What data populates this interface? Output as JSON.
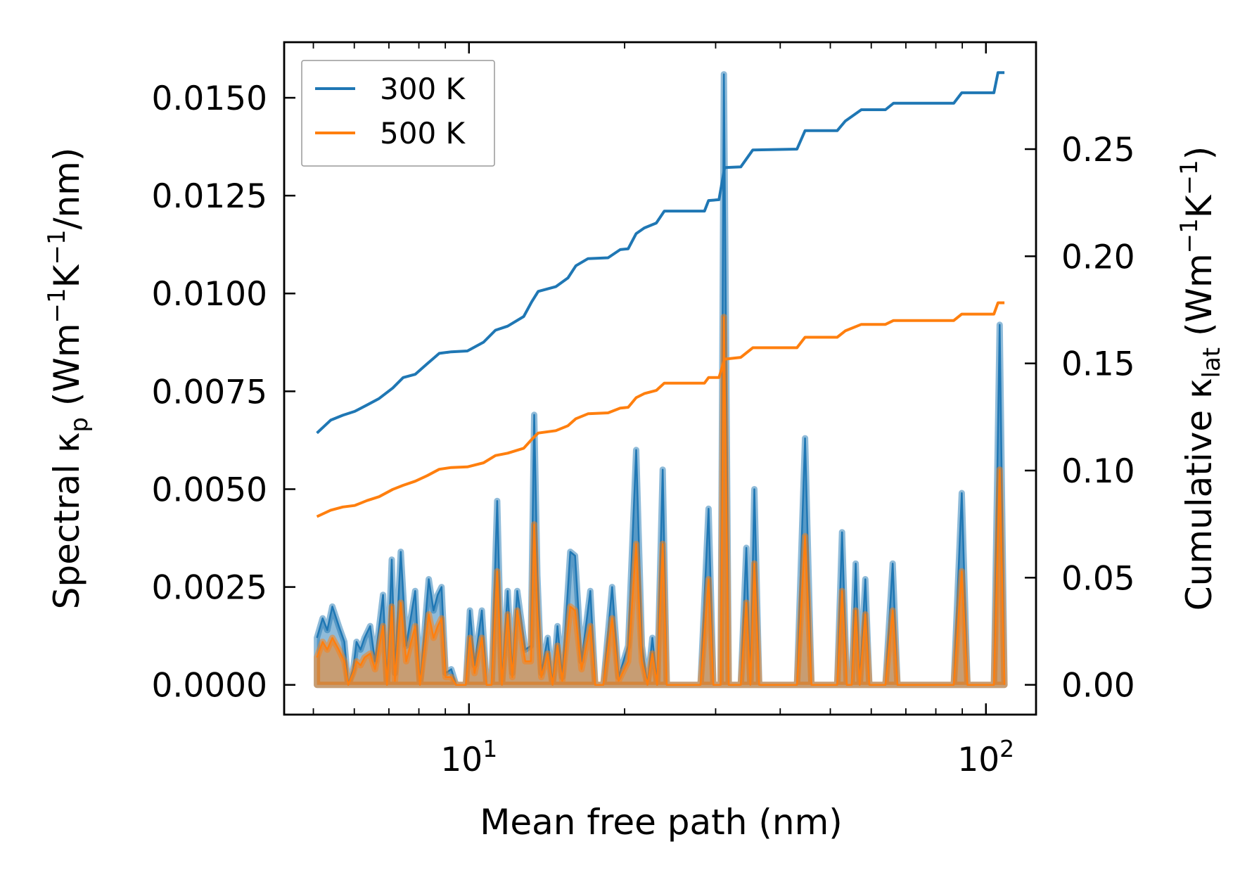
{
  "chart_data": {
    "type": "line",
    "xscale": "log",
    "xlabel": "Mean free path (nm)",
    "ylabel": "Spectral κ_p (Wm⁻¹K⁻¹/nm)",
    "ylabel_parts": {
      "pre": "Spectral κ",
      "sub": "p",
      "post": " (Wm",
      "s1": "−1",
      "m": "K",
      "s2": "−1",
      "end": "/nm)"
    },
    "y2label": "Cumulative κ_lat (Wm⁻¹K⁻¹)",
    "y2label_parts": {
      "pre": "Cumulative κ",
      "sub": "lat",
      "post": " (Wm",
      "s1": "−1",
      "m": "K",
      "s2": "−1",
      "end": ")"
    },
    "xlim": [
      4.39,
      125
    ],
    "ylim": [
      -0.00076,
      0.01642
    ],
    "y2lim": [
      -0.0139,
      0.2999
    ],
    "xticks": [
      {
        "value": 10,
        "base": "10",
        "exp": "1"
      },
      {
        "value": 100,
        "base": "10",
        "exp": "2"
      }
    ],
    "yticks": [
      {
        "value": 0,
        "label": "0.0000"
      },
      {
        "value": 0.0025,
        "label": "0.0025"
      },
      {
        "value": 0.005,
        "label": "0.0050"
      },
      {
        "value": 0.0075,
        "label": "0.0075"
      },
      {
        "value": 0.01,
        "label": "0.0100"
      },
      {
        "value": 0.0125,
        "label": "0.0125"
      },
      {
        "value": 0.015,
        "label": "0.0150"
      }
    ],
    "y2ticks": [
      {
        "value": 0,
        "label": "0.00"
      },
      {
        "value": 0.05,
        "label": "0.05"
      },
      {
        "value": 0.1,
        "label": "0.10"
      },
      {
        "value": 0.15,
        "label": "0.15"
      },
      {
        "value": 0.2,
        "label": "0.20"
      },
      {
        "value": 0.25,
        "label": "0.25"
      }
    ],
    "legend": {
      "position": "top-left",
      "entries": [
        "300 K",
        "500 K"
      ]
    },
    "colors": {
      "300 K": "#1f77b4",
      "500 K": "#ff7f0e"
    },
    "spectral": {
      "x": [
        5.08,
        5.21,
        5.32,
        5.44,
        5.6,
        5.74,
        5.84,
        5.97,
        6.06,
        6.17,
        6.28,
        6.44,
        6.58,
        6.82,
        6.94,
        7.09,
        7.19,
        7.38,
        7.56,
        7.87,
        8.04,
        8.36,
        8.54,
        8.7,
        8.85,
        9.01,
        9.24,
        9.44,
        9.86,
        10.04,
        10.25,
        10.59,
        10.82,
        11.06,
        11.34,
        11.58,
        11.88,
        12.13,
        12.4,
        12.85,
        13.17,
        13.37,
        13.56,
        13.8,
        14.2,
        14.51,
        14.83,
        15.15,
        15.7,
        16.04,
        16.51,
        17.17,
        17.55,
        18.19,
        18.92,
        19.47,
        20.32,
        21.06,
        21.6,
        22.14,
        22.63,
        23.12,
        23.7,
        24.13,
        28.05,
        29.07,
        29.7,
        30.67,
        31.12,
        31.8,
        33.55,
        34.4,
        35.02,
        35.65,
        36.42,
        43.1,
        44.68,
        45.97,
        51.56,
        52.68,
        53.82,
        54.99,
        55.98,
        56.99,
        58.44,
        59.49,
        63.92,
        66.01,
        67.44,
        86.65,
        89.8,
        92.1,
        103.6,
        106.3,
        108.6
      ],
      "300 K": [
        0.0012,
        0.0017,
        0.0014,
        0.002,
        0.0015,
        0.0011,
        0,
        0.0004,
        0.0011,
        0.0009,
        0.0012,
        0.0015,
        0.0006,
        0.0023,
        0,
        0.0032,
        0.0003,
        0.0034,
        0.001,
        0.0024,
        0,
        0.0027,
        0.0019,
        0.0023,
        0.0025,
        0.0003,
        0.0004,
        0,
        0,
        0.0019,
        0.0005,
        0.0019,
        0,
        0,
        0.0047,
        0,
        0.0024,
        0.0003,
        0.0024,
        0.0009,
        0.001,
        0.0069,
        0.0028,
        0.0003,
        0.0012,
        0,
        0.0015,
        0.0002,
        0.0034,
        0.0033,
        0.0006,
        0.0024,
        0,
        0,
        0.0025,
        0.0002,
        0.001,
        0.006,
        0.001,
        0,
        0.0012,
        0,
        0.0055,
        0,
        0,
        0.0045,
        0,
        0,
        0.0156,
        0,
        0,
        0.0035,
        0,
        0.005,
        0,
        0,
        0.0063,
        0,
        0,
        0.0039,
        0,
        0,
        0.0031,
        0,
        0.0027,
        0,
        0,
        0.0031,
        0,
        0,
        0.0049,
        0,
        0,
        0.0092,
        0
      ],
      "500 K": [
        0.0007,
        0.0011,
        0.0009,
        0.0012,
        0.0009,
        0.0006,
        0,
        0.0003,
        0.0006,
        0.0005,
        0.0007,
        0.0008,
        0.0004,
        0.0015,
        0,
        0.002,
        0.0001,
        0.0021,
        0.0006,
        0.0015,
        0,
        0.0018,
        0.0012,
        0.0015,
        0.0017,
        0.0002,
        0.0002,
        0,
        0,
        0.0012,
        0.0003,
        0.0012,
        0,
        0,
        0.0029,
        0,
        0.0018,
        0.0002,
        0.0019,
        0.0006,
        0.0006,
        0.0041,
        0.0018,
        0.0002,
        0.0008,
        0,
        0.001,
        0.0001,
        0.002,
        0.0019,
        0.0004,
        0.0015,
        0,
        0,
        0.0017,
        0.0001,
        0.0006,
        0.0036,
        0.0006,
        0,
        0.0008,
        0,
        0.0036,
        0,
        0,
        0.0027,
        0,
        0,
        0.0094,
        0,
        0,
        0.0021,
        0,
        0.0031,
        0,
        0,
        0.0038,
        0,
        0,
        0.0024,
        0,
        0,
        0.0019,
        0,
        0.0018,
        0,
        0,
        0.0019,
        0,
        0,
        0.0029,
        0,
        0,
        0.0055,
        0
      ]
    },
    "cumulative": {
      "x": [
        5.08,
        5.4,
        5.7,
        6.01,
        6.35,
        6.7,
        7.12,
        7.46,
        7.87,
        8.3,
        8.76,
        9.24,
        9.93,
        10.67,
        11.25,
        11.88,
        12.76,
        13.22,
        13.61,
        14.72,
        15.54,
        16.1,
        16.99,
        18.58,
        19.61,
        20.32,
        21.06,
        21.83,
        23.03,
        23.87,
        28.55,
        29.07,
        30.45,
        31.23,
        33.55,
        35.4,
        43.1,
        44.68,
        51.56,
        53.44,
        57.4,
        63.92,
        66.24,
        86.65,
        89.8,
        103.6,
        105.5,
        108.6
      ],
      "300 K": [
        0.1175,
        0.1235,
        0.1258,
        0.1276,
        0.1306,
        0.1336,
        0.1385,
        0.1434,
        0.1449,
        0.1498,
        0.1547,
        0.1554,
        0.1558,
        0.1599,
        0.1655,
        0.1674,
        0.1719,
        0.1787,
        0.1836,
        0.1858,
        0.1899,
        0.1956,
        0.1989,
        0.1993,
        0.2031,
        0.2035,
        0.2106,
        0.2132,
        0.2155,
        0.2211,
        0.2211,
        0.226,
        0.2264,
        0.2414,
        0.2417,
        0.2496,
        0.25,
        0.2586,
        0.2586,
        0.2631,
        0.2684,
        0.2684,
        0.2714,
        0.2714,
        0.2763,
        0.2763,
        0.2857,
        0.2857
      ],
      "500 K": [
        0.0785,
        0.0815,
        0.083,
        0.0837,
        0.086,
        0.0878,
        0.0912,
        0.0931,
        0.095,
        0.0976,
        0.1006,
        0.1014,
        0.1017,
        0.1036,
        0.107,
        0.1081,
        0.1104,
        0.1145,
        0.1175,
        0.1186,
        0.1209,
        0.1242,
        0.1265,
        0.1269,
        0.1291,
        0.1295,
        0.134,
        0.1359,
        0.1374,
        0.1408,
        0.1408,
        0.1434,
        0.1434,
        0.152,
        0.1528,
        0.1573,
        0.1573,
        0.1622,
        0.1622,
        0.1652,
        0.1682,
        0.1682,
        0.17,
        0.17,
        0.173,
        0.173,
        0.1783,
        0.1783
      ]
    }
  }
}
